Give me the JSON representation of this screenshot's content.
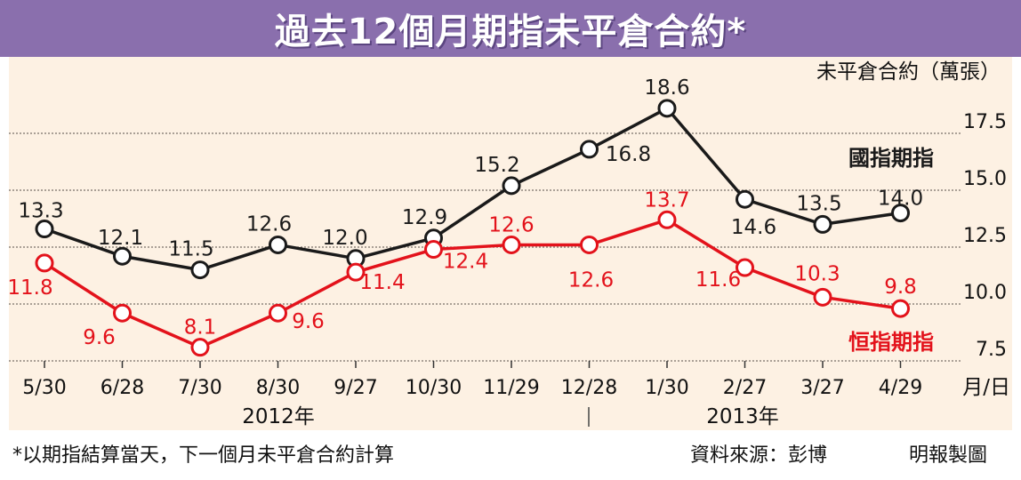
{
  "header": {
    "title": "過去12個月期指未平倉合約*"
  },
  "chart_data": {
    "type": "line",
    "title": "過去12個月期指未平倉合約*",
    "ylabel": "未平倉合約（萬張）",
    "xlabel": "月/日",
    "categories": [
      "5/30",
      "6/28",
      "7/30",
      "8/30",
      "9/27",
      "10/30",
      "11/29",
      "12/28",
      "1/30",
      "2/27",
      "3/27",
      "4/29"
    ],
    "year_labels": [
      "2012年",
      "2013年"
    ],
    "ylim": [
      7.5,
      17.5
    ],
    "yticks": [
      "7.5",
      "10.0",
      "12.5",
      "15.0",
      "17.5"
    ],
    "grid": true,
    "series": [
      {
        "name": "國指期指",
        "color": "#1a1a1a",
        "values": [
          13.3,
          12.1,
          11.5,
          12.6,
          12.0,
          12.9,
          15.2,
          16.8,
          18.6,
          14.6,
          13.5,
          14.0
        ]
      },
      {
        "name": "恒指期指",
        "color": "#e3121b",
        "values": [
          11.8,
          9.6,
          8.1,
          9.6,
          11.4,
          12.4,
          12.6,
          12.6,
          13.7,
          11.6,
          10.3,
          9.8
        ]
      }
    ]
  },
  "footer": {
    "note": "*以期指結算當天，下一個月未平倉合約計算",
    "source": "資料來源：彭博",
    "credit": "明報製圖"
  }
}
